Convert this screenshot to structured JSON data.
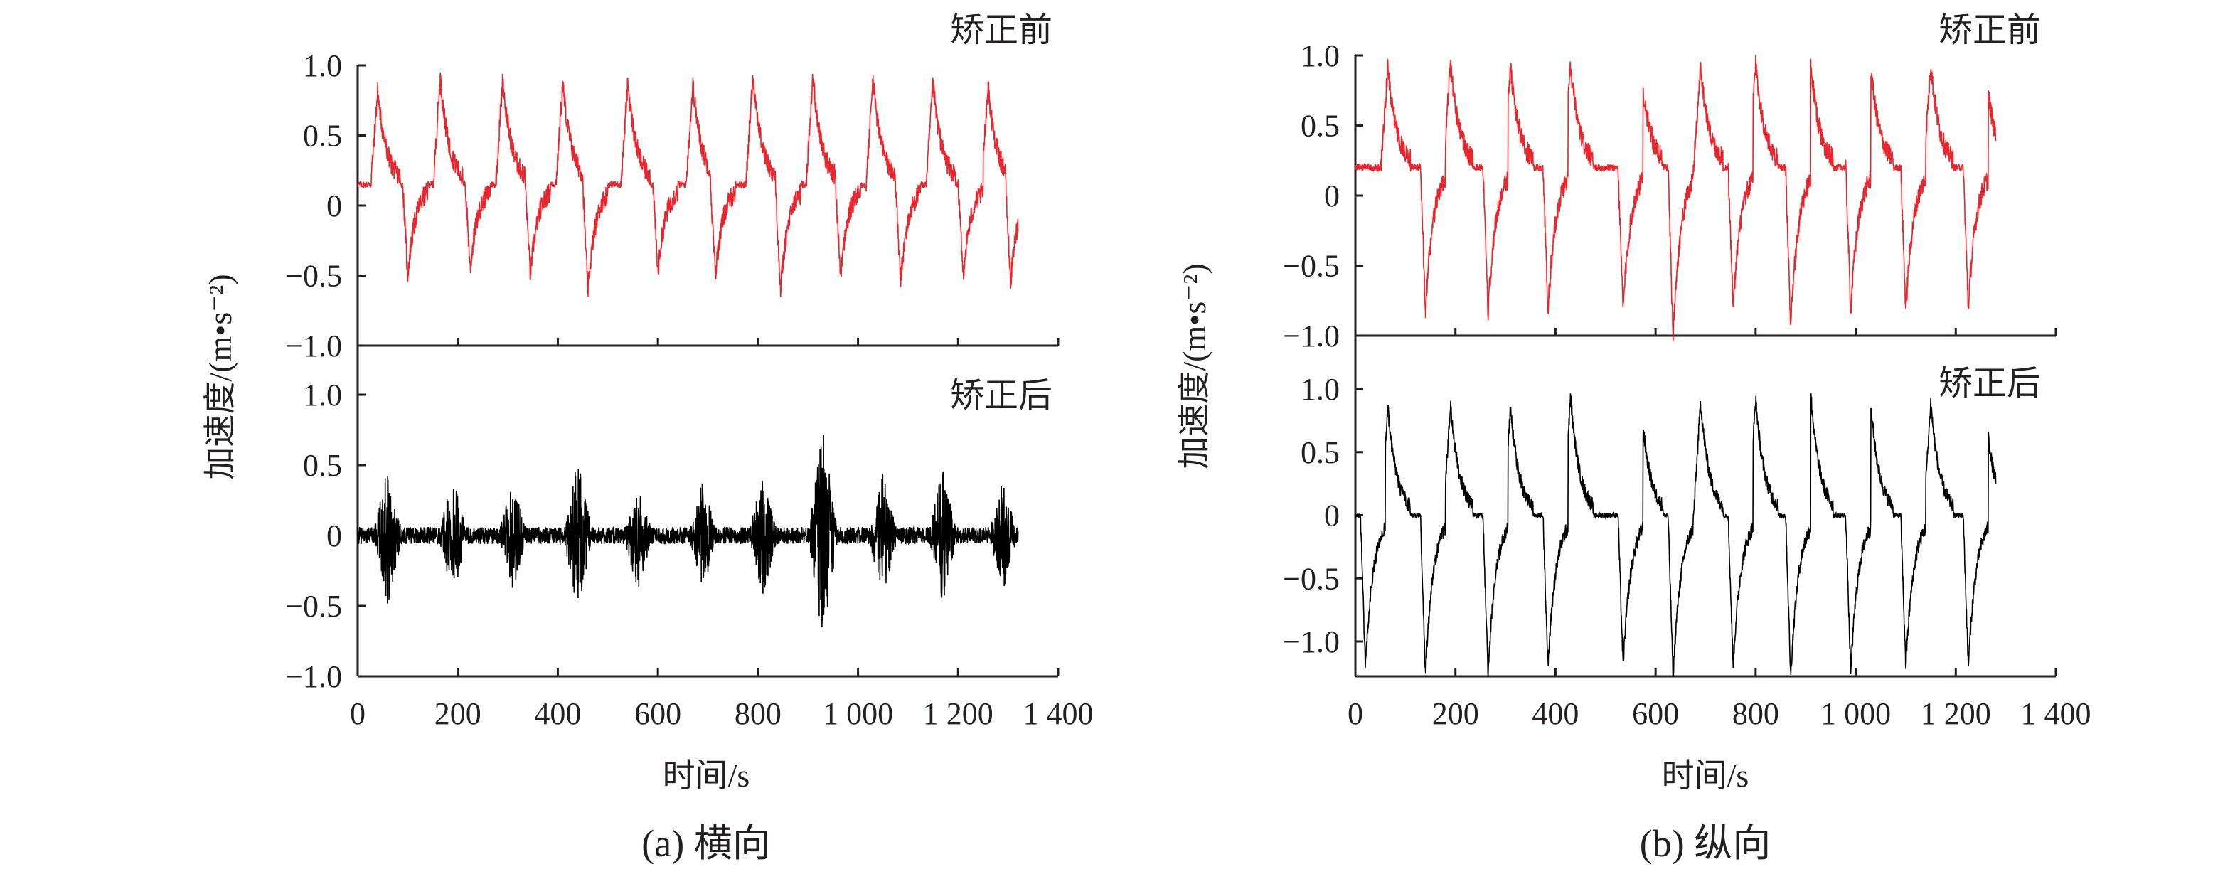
{
  "chart_data": [
    {
      "type": "line",
      "caption": "(a) 横向",
      "ylabel": "加速度/(m•s⁻²)",
      "xlabel": "时间/s",
      "x_ticks": [
        0,
        200,
        400,
        600,
        800,
        1000,
        1200,
        1400
      ],
      "x_tick_labels": [
        "0",
        "200",
        "400",
        "600",
        "800",
        "1 000",
        "1 200",
        "1 400"
      ],
      "xlim": [
        0,
        1400
      ],
      "x_data_range": [
        0,
        1320
      ],
      "panels": [
        {
          "name": "矫正前",
          "color": "#e8262d",
          "ylim": [
            -1.0,
            1.0
          ],
          "y_ticks": [
            1.0,
            0.5,
            0,
            -0.5,
            -1.0
          ],
          "y_tick_labels": [
            "1.0",
            "0.5",
            "0",
            "−0.5",
            "−1.0"
          ],
          "baseline": 0.15,
          "peak_times": [
            40,
            165,
            290,
            410,
            540,
            670,
            790,
            910,
            1030,
            1150,
            1260
          ],
          "peak_values": [
            0.82,
            0.92,
            0.91,
            0.87,
            0.88,
            0.87,
            0.94,
            0.92,
            0.9,
            0.87,
            0.85
          ],
          "trough_times": [
            100,
            225,
            345,
            460,
            600,
            715,
            845,
            965,
            1085,
            1210,
            1305
          ],
          "trough_values": [
            -0.5,
            -0.45,
            -0.5,
            -0.62,
            -0.48,
            -0.5,
            -0.62,
            -0.5,
            -0.55,
            -0.5,
            -0.55
          ],
          "outlier_min": -0.75
        },
        {
          "name": "矫正后",
          "color": "#000000",
          "ylim": [
            -1.0,
            1.0
          ],
          "y_ticks": [
            1.0,
            0.5,
            0,
            -0.5,
            -1.0
          ],
          "y_tick_labels": [
            "1.0",
            "0.5",
            "0",
            "−0.5",
            "−1.0"
          ],
          "baseline": 0.0,
          "burst_times": [
            60,
            190,
            310,
            440,
            560,
            690,
            810,
            930,
            1050,
            1170,
            1290
          ],
          "burst_amplitudes": [
            0.5,
            0.45,
            0.4,
            0.55,
            0.4,
            0.4,
            0.45,
            0.78,
            0.45,
            0.5,
            0.4
          ],
          "min_value": -0.65
        }
      ]
    },
    {
      "type": "line",
      "caption": "(b) 纵向",
      "ylabel": "加速度/(m•s⁻²)",
      "xlabel": "时间/s",
      "x_ticks": [
        0,
        200,
        400,
        600,
        800,
        1000,
        1200,
        1400
      ],
      "x_tick_labels": [
        "0",
        "200",
        "400",
        "600",
        "800",
        "1 000",
        "1 200",
        "1 400"
      ],
      "xlim": [
        0,
        1400
      ],
      "x_data_range": [
        0,
        1280
      ],
      "panels": [
        {
          "name": "矫正前",
          "color": "#e8262d",
          "ylim": [
            -1.0,
            1.0
          ],
          "y_ticks": [
            1.0,
            0.5,
            0,
            -0.5,
            -1.0
          ],
          "y_tick_labels": [
            "1.0",
            "0.5",
            "0",
            "−0.5",
            "−1.0"
          ],
          "baseline": 0.2,
          "peak_times": [
            65,
            190,
            310,
            430,
            570,
            690,
            800,
            910,
            1030,
            1150,
            1260
          ],
          "peak_values": [
            0.92,
            0.95,
            0.92,
            0.93,
            0.95,
            0.93,
            0.95,
            0.95,
            0.92,
            0.94,
            0.9
          ],
          "trough_times": [
            140,
            265,
            385,
            535,
            635,
            755,
            870,
            990,
            1100,
            1225
          ],
          "trough_values": [
            -0.82,
            -0.85,
            -0.82,
            -0.82,
            -1.0,
            -0.8,
            -0.95,
            -0.82,
            -0.82,
            -0.8
          ]
        },
        {
          "name": "矫正后",
          "color": "#000000",
          "ylim": [
            -1.2,
            1.2
          ],
          "y_ticks": [
            1.0,
            0.5,
            0,
            -0.5,
            -1.0
          ],
          "y_tick_labels": [
            "1.0",
            "0.5",
            "0",
            "−0.5",
            "−1.0"
          ],
          "baseline": 0.0,
          "peak_times": [
            65,
            190,
            310,
            430,
            570,
            690,
            800,
            910,
            1030,
            1150,
            1260
          ],
          "peak_values": [
            0.85,
            0.88,
            0.85,
            0.95,
            0.92,
            0.9,
            0.92,
            0.98,
            0.88,
            0.9,
            0.82
          ],
          "trough_times": [
            20,
            140,
            265,
            385,
            535,
            635,
            755,
            870,
            990,
            1100,
            1225
          ],
          "trough_values": [
            -1.2,
            -1.25,
            -1.25,
            -1.2,
            -1.2,
            -1.28,
            -1.2,
            -1.28,
            -1.25,
            -1.2,
            -1.2
          ]
        }
      ]
    }
  ]
}
